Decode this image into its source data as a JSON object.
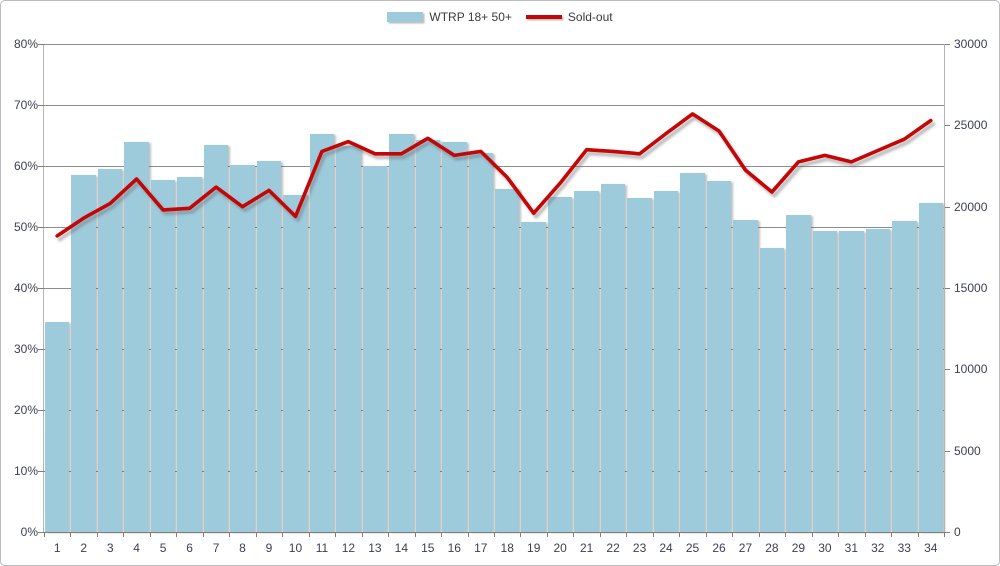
{
  "chart_data": {
    "type": "combo",
    "title": "",
    "grid": true,
    "legend_position": "top-center",
    "categories": [
      "1",
      "2",
      "3",
      "4",
      "5",
      "6",
      "7",
      "8",
      "9",
      "10",
      "11",
      "12",
      "13",
      "14",
      "15",
      "16",
      "17",
      "18",
      "19",
      "20",
      "21",
      "22",
      "23",
      "24",
      "25",
      "26",
      "27",
      "28",
      "29",
      "30",
      "31",
      "32",
      "33",
      "34"
    ],
    "series": [
      {
        "name": "WTRP 18+ 50+",
        "type": "bar",
        "axis": "left",
        "color": "#9dcbdc",
        "values": [
          34.5,
          58.5,
          59.5,
          64.0,
          57.7,
          58.2,
          63.4,
          60.2,
          60.9,
          55.3,
          65.2,
          63.3,
          60.0,
          65.3,
          64.2,
          64.0,
          62.1,
          56.3,
          50.8,
          54.9,
          55.9,
          57.1,
          54.8,
          55.9,
          58.9,
          57.5,
          51.1,
          46.6,
          51.9,
          49.3,
          49.3,
          49.7,
          51.0,
          54.0
        ]
      },
      {
        "name": "Sold-out",
        "type": "line",
        "axis": "right",
        "color": "#c40606",
        "values": [
          18200,
          19300,
          20200,
          21700,
          19800,
          19900,
          21200,
          20000,
          21000,
          19400,
          23400,
          24000,
          23250,
          23250,
          24200,
          23150,
          23400,
          21800,
          19600,
          21450,
          23500,
          23400,
          23250,
          24500,
          25700,
          24650,
          22250,
          20900,
          22750,
          23150,
          22750,
          23450,
          24150,
          25300
        ]
      }
    ],
    "left_axis": {
      "min": 0,
      "max": 80,
      "step": 10,
      "format": "percent",
      "labels": [
        "0%",
        "10%",
        "20%",
        "30%",
        "40%",
        "50%",
        "60%",
        "70%",
        "80%"
      ]
    },
    "right_axis": {
      "min": 0,
      "max": 30000,
      "step": 5000,
      "labels": [
        "0",
        "5000",
        "10000",
        "15000",
        "20000",
        "25000",
        "30000"
      ]
    }
  },
  "colors": {
    "gridline": "#8d8d8d",
    "axis_line": "#b5b5b5",
    "axis_line_bottom": "#7f7f7f",
    "tick_label": "#3c3f55",
    "background": "#ffffff",
    "frame_border": "#b9bcc0"
  }
}
